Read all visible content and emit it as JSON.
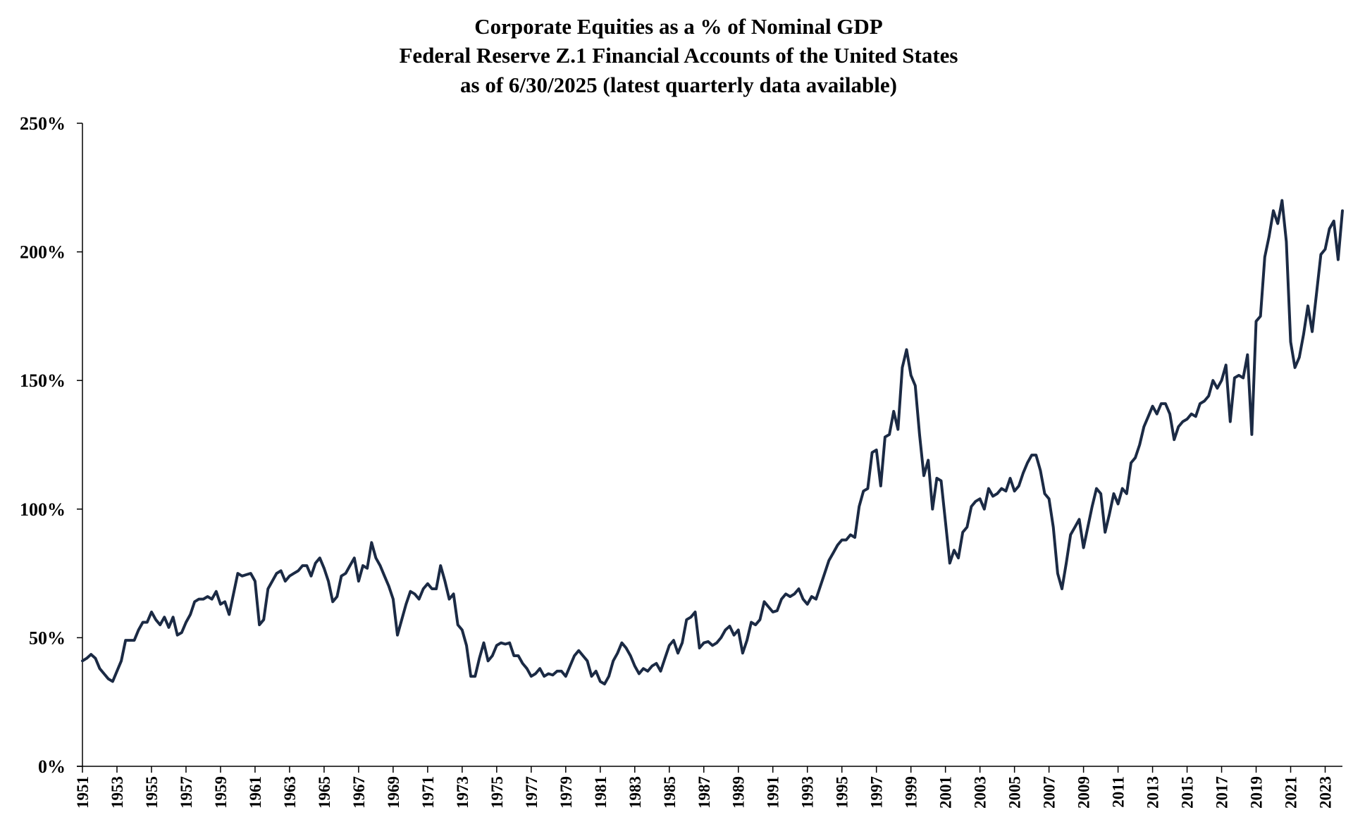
{
  "chart_data": {
    "type": "line",
    "title": "Corporate Equities as a % of Nominal GDP",
    "subtitle": "Federal Reserve Z.1 Financial Accounts of the United States",
    "subtitle2": "as of 6/30/2025 (latest quarterly data available)",
    "xlabel": "",
    "ylabel": "",
    "ylim": [
      0,
      250
    ],
    "yticks": [
      0,
      50,
      100,
      150,
      200,
      250
    ],
    "ytick_labels": [
      "0%",
      "50%",
      "100%",
      "150%",
      "200%",
      "250%"
    ],
    "xticks": [
      "1951",
      "1953",
      "1955",
      "1957",
      "1959",
      "1961",
      "1963",
      "1965",
      "1967",
      "1969",
      "1971",
      "1973",
      "1975",
      "1977",
      "1979",
      "1981",
      "1983",
      "1985",
      "1987",
      "1989",
      "1991",
      "1993",
      "1995",
      "1997",
      "1999",
      "2001",
      "2003",
      "2005",
      "2007",
      "2009",
      "2011",
      "2013",
      "2015",
      "2017",
      "2019",
      "2021",
      "2023"
    ],
    "grid": false,
    "color": "#1b2a44",
    "x_start": 1951,
    "x_step": 0.25,
    "series": [
      {
        "name": "Corporate Equities % of GDP",
        "values": [
          41,
          42,
          43.5,
          42,
          38,
          36,
          34,
          33,
          37,
          41,
          49,
          49,
          49,
          53,
          56,
          56,
          60,
          57,
          55,
          58,
          54,
          58,
          51,
          52,
          56,
          59,
          64,
          65,
          65,
          66,
          65,
          68,
          63,
          64,
          59,
          67,
          75,
          74,
          74.5,
          75,
          72,
          55,
          57,
          69,
          72,
          75,
          76,
          72,
          74,
          75,
          76,
          78,
          78,
          74,
          79,
          81,
          77,
          72,
          64,
          66,
          74,
          75,
          78,
          81,
          72,
          78,
          77,
          87,
          81,
          78,
          74,
          70,
          65,
          51,
          57,
          63,
          68,
          67,
          65,
          69,
          71,
          69,
          69,
          78,
          72,
          65,
          67,
          55,
          53,
          47,
          35,
          35,
          42,
          48,
          41,
          43,
          47,
          48,
          47.5,
          48,
          43,
          43,
          40,
          38,
          35,
          36,
          38,
          35,
          36,
          35.5,
          37,
          37,
          35,
          39,
          43,
          45,
          43,
          41,
          35,
          37,
          33,
          32,
          35,
          41,
          44,
          48,
          46,
          43,
          39,
          36,
          38,
          37,
          39,
          40,
          37,
          42,
          47,
          49,
          44,
          48,
          57,
          58,
          60,
          46,
          48,
          48.5,
          47,
          48,
          50,
          53,
          54.5,
          51,
          53,
          44,
          49,
          56,
          55,
          57,
          64,
          62,
          60,
          60.5,
          65,
          67,
          66,
          67,
          69,
          65,
          63,
          66,
          65,
          70,
          75,
          80,
          83,
          86,
          88,
          88,
          90,
          89,
          101,
          107,
          108,
          122,
          123,
          109,
          128,
          129,
          138,
          131,
          155,
          162,
          152,
          148,
          129,
          113,
          119,
          100,
          112,
          111,
          95,
          79,
          84,
          81,
          91,
          93,
          101,
          103,
          104,
          100,
          108,
          105,
          106,
          108,
          107,
          112,
          107,
          109,
          114,
          118,
          121,
          121,
          115,
          106,
          104,
          93,
          75,
          69,
          79,
          90,
          93,
          96,
          85,
          93,
          101,
          108,
          106,
          91,
          98,
          106,
          102,
          108,
          106,
          118,
          120,
          125,
          132,
          136,
          140,
          137,
          141,
          141,
          137,
          127,
          132,
          134,
          135,
          137,
          136,
          141,
          142,
          144,
          150,
          147,
          150,
          156,
          134,
          151,
          152,
          151,
          160,
          129,
          173,
          175,
          198,
          206,
          216,
          211,
          220,
          204,
          165,
          155,
          159,
          168,
          179,
          169,
          184,
          199,
          201,
          209,
          212,
          197,
          216
        ]
      }
    ]
  }
}
